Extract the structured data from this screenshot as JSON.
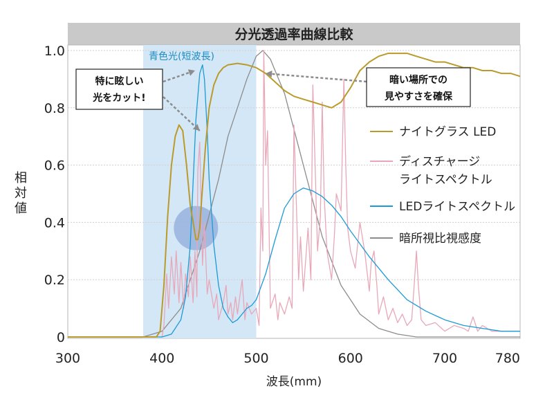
{
  "chart_data": {
    "type": "line",
    "title": "分光透過率曲線比較",
    "xlabel": "波長(mm)",
    "ylabel": "相対値",
    "xlim": [
      300,
      780
    ],
    "ylim": [
      0,
      1.0
    ],
    "xticks": [
      300,
      400,
      500,
      600,
      700,
      780
    ],
    "yticks": [
      {
        "value": 0,
        "label": "0"
      },
      {
        "value": 0.2,
        "label": "0.2"
      },
      {
        "value": 0.4,
        "label": "0.4"
      },
      {
        "value": 0.6,
        "label": "0.6"
      },
      {
        "value": 0.8,
        "label": "0.8"
      },
      {
        "value": 1.0,
        "label": "1.0"
      }
    ],
    "grid": true,
    "legend_placement": "right",
    "highlight_band": {
      "x_from": 380,
      "x_to": 500,
      "label": "青色光(短波長)",
      "color": "#d4e7f6"
    },
    "highlight_circle": {
      "x": 436,
      "y": 0.38,
      "color": "#8aa6d8"
    },
    "callouts": [
      {
        "lines": [
          "特に眩しい",
          "光をカット!"
        ],
        "arrow_targets": [
          {
            "x": 435,
            "y": 0.93
          },
          {
            "x": 440,
            "y": 0.72
          }
        ]
      },
      {
        "lines": [
          "暗い場所での",
          "見やすさを確保"
        ],
        "arrow_targets": [
          {
            "x": 510,
            "y": 0.92
          }
        ]
      }
    ],
    "series": [
      {
        "name": "ナイトグラス LED",
        "color": "#b99a2b",
        "x": [
          300,
          380,
          394,
          398,
          402,
          406,
          410,
          414,
          418,
          422,
          426,
          430,
          432,
          434,
          436,
          438,
          440,
          442,
          446,
          450,
          455,
          460,
          465,
          470,
          480,
          490,
          500,
          510,
          520,
          530,
          540,
          550,
          560,
          570,
          580,
          590,
          600,
          610,
          620,
          630,
          640,
          650,
          660,
          670,
          680,
          690,
          700,
          710,
          720,
          730,
          740,
          750,
          760,
          770,
          780
        ],
        "y": [
          0,
          0,
          0,
          0.02,
          0.18,
          0.42,
          0.6,
          0.7,
          0.74,
          0.72,
          0.6,
          0.46,
          0.42,
          0.38,
          0.34,
          0.34,
          0.38,
          0.48,
          0.66,
          0.8,
          0.88,
          0.92,
          0.94,
          0.95,
          0.955,
          0.95,
          0.94,
          0.92,
          0.89,
          0.86,
          0.84,
          0.83,
          0.82,
          0.81,
          0.8,
          0.82,
          0.87,
          0.93,
          0.96,
          0.98,
          0.99,
          0.99,
          0.99,
          0.98,
          0.97,
          0.96,
          0.96,
          0.95,
          0.94,
          0.94,
          0.93,
          0.93,
          0.92,
          0.92,
          0.91
        ]
      },
      {
        "name": "ディスチャージ ライトスペクトル",
        "color": "#e8a7b8",
        "x": [
          300,
          390,
          400,
          402,
          405,
          407,
          410,
          413,
          415,
          418,
          420,
          423,
          425,
          428,
          430,
          433,
          435,
          437,
          438,
          440,
          443,
          445,
          448,
          450,
          455,
          458,
          460,
          465,
          468,
          470,
          473,
          475,
          478,
          480,
          485,
          488,
          490,
          495,
          500,
          503,
          505,
          507,
          508,
          510,
          512,
          515,
          520,
          523,
          525,
          530,
          535,
          538,
          540,
          545,
          547,
          550,
          555,
          558,
          560,
          565,
          568,
          570,
          572,
          575,
          580,
          583,
          585,
          590,
          593,
          595,
          597,
          600,
          605,
          610,
          615,
          620,
          622,
          625,
          628,
          630,
          635,
          640,
          645,
          650,
          655,
          660,
          665,
          668,
          670,
          672,
          675,
          680,
          690,
          700,
          710,
          720,
          725,
          730,
          735,
          740,
          750,
          760,
          770,
          780
        ],
        "y": [
          0,
          0,
          0,
          0.04,
          0.22,
          0.1,
          0.28,
          0.15,
          0.3,
          0.12,
          0.26,
          0.1,
          0.22,
          0.14,
          0.28,
          0.12,
          0.3,
          0.14,
          0.58,
          0.68,
          0.25,
          0.4,
          0.15,
          0.2,
          0.1,
          0.15,
          0.06,
          0.12,
          0.18,
          0.08,
          0.12,
          0.06,
          0.14,
          0.08,
          0.2,
          0.06,
          0.12,
          0.08,
          0.1,
          0.04,
          0.45,
          0.3,
          1.0,
          0.6,
          0.72,
          0.1,
          0.15,
          0.06,
          0.12,
          0.08,
          0.14,
          0.1,
          0.74,
          0.2,
          0.35,
          0.16,
          0.38,
          0.2,
          0.88,
          0.3,
          0.42,
          0.82,
          0.5,
          0.3,
          0.2,
          0.36,
          0.5,
          0.44,
          0.9,
          0.6,
          0.38,
          0.3,
          0.24,
          0.4,
          0.3,
          0.16,
          0.26,
          0.3,
          0.18,
          0.08,
          0.14,
          0.06,
          0.1,
          0.05,
          0.08,
          0.04,
          0.06,
          0.2,
          0.3,
          0.18,
          0.06,
          0.04,
          0.05,
          0.02,
          0.04,
          0.03,
          0.02,
          0.07,
          0.02,
          0.04,
          0.02,
          0.02,
          0.02,
          0.02
        ]
      },
      {
        "name": "LEDライトスペクトル",
        "color": "#1a9ad6",
        "x": [
          300,
          400,
          410,
          420,
          425,
          430,
          433,
          436,
          440,
          443,
          445,
          448,
          450,
          455,
          460,
          465,
          470,
          475,
          480,
          485,
          490,
          495,
          500,
          510,
          520,
          530,
          540,
          550,
          560,
          570,
          580,
          590,
          600,
          620,
          640,
          660,
          680,
          700,
          720,
          740,
          760,
          780
        ],
        "y": [
          0,
          0,
          0.01,
          0.06,
          0.14,
          0.32,
          0.54,
          0.76,
          0.92,
          0.95,
          0.9,
          0.72,
          0.55,
          0.32,
          0.18,
          0.1,
          0.07,
          0.05,
          0.06,
          0.08,
          0.1,
          0.11,
          0.13,
          0.22,
          0.34,
          0.45,
          0.5,
          0.52,
          0.51,
          0.49,
          0.46,
          0.42,
          0.37,
          0.28,
          0.2,
          0.13,
          0.09,
          0.06,
          0.04,
          0.03,
          0.02,
          0.02
        ]
      },
      {
        "name": "暗所視比視感度",
        "color": "#8c8c8c",
        "x": [
          300,
          380,
          400,
          420,
          440,
          460,
          470,
          480,
          490,
          500,
          507,
          515,
          530,
          550,
          570,
          590,
          610,
          630,
          650,
          670,
          700,
          740,
          780
        ],
        "y": [
          0,
          0.0,
          0.02,
          0.1,
          0.3,
          0.55,
          0.7,
          0.8,
          0.9,
          0.98,
          1.0,
          0.97,
          0.85,
          0.6,
          0.35,
          0.18,
          0.08,
          0.03,
          0.01,
          0.0,
          0.0,
          0.0,
          0.0
        ]
      }
    ]
  }
}
